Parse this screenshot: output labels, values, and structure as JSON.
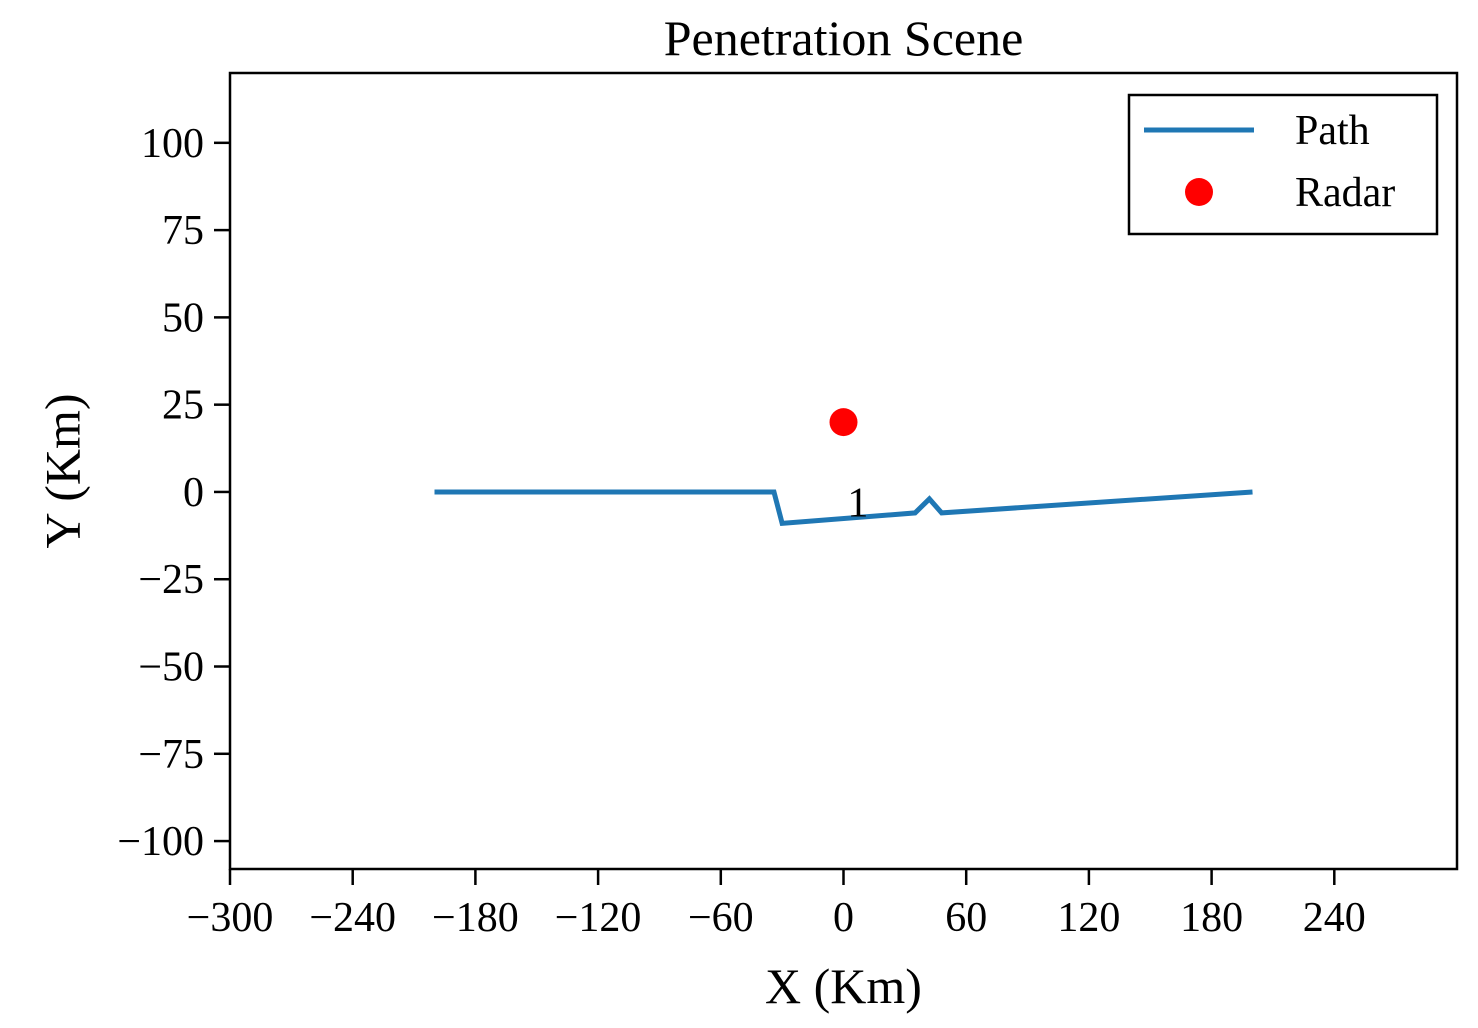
{
  "chart_data": {
    "type": "line",
    "title": "Penetration Scene",
    "xlabel": "X (Km)",
    "ylabel": "Y (Km)",
    "xlim": [
      -300,
      300
    ],
    "ylim": [
      -108,
      120
    ],
    "xticks": [
      -300,
      -240,
      -180,
      -120,
      -60,
      0,
      60,
      120,
      180,
      240
    ],
    "xtick_labels": [
      "−300",
      "−240",
      "−180",
      "−120",
      "−60",
      "0",
      "60",
      "120",
      "180",
      "240"
    ],
    "yticks": [
      100,
      75,
      50,
      25,
      0,
      -25,
      -50,
      -75,
      -100
    ],
    "ytick_labels": [
      "100",
      "75",
      "50",
      "25",
      "0",
      "−25",
      "−50",
      "−75",
      "−100"
    ],
    "grid": false,
    "legend_position": "top-right",
    "series": [
      {
        "name": "Path",
        "kind": "line",
        "color": "#1f77b4",
        "x": [
          -200,
          -34,
          -30,
          35,
          42,
          48,
          200
        ],
        "y": [
          0,
          0,
          -9,
          -6,
          -2,
          -6,
          0
        ]
      },
      {
        "name": "Radar",
        "kind": "scatter",
        "color": "#ff0000",
        "x": [
          0
        ],
        "y": [
          20
        ]
      }
    ],
    "annotations": [
      {
        "text": "1",
        "x": 7,
        "y": -3
      }
    ]
  }
}
